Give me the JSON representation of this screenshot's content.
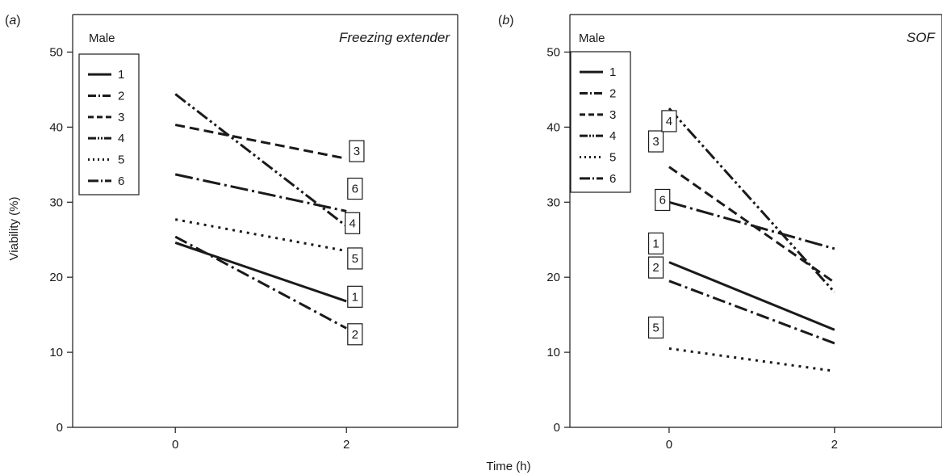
{
  "figure": {
    "xlabel": "Time (h)",
    "ylabel": "Viability (%)"
  },
  "chart_data": [
    {
      "type": "line",
      "panel": "(a)",
      "panel_letter": "a",
      "title": "Freezing extender",
      "legend_title": "Male",
      "legend_placement": "top-left",
      "x": [
        0,
        2
      ],
      "xticks": [
        "0",
        "2"
      ],
      "xlim": [
        -1.2,
        3.3
      ],
      "ylim": [
        0,
        55
      ],
      "yticks": [
        0,
        10,
        20,
        30,
        40,
        50
      ],
      "grid": false,
      "series": [
        {
          "name": "1",
          "values": [
            24.6,
            16.8
          ],
          "dash": "solid",
          "tag_anchor": [
            2.1,
            17.4
          ]
        },
        {
          "name": "2",
          "values": [
            25.4,
            13.2
          ],
          "dash": "dashdot",
          "tag_anchor": [
            2.1,
            12.4
          ]
        },
        {
          "name": "3",
          "values": [
            40.3,
            35.8
          ],
          "dash": "dashed",
          "tag_anchor": [
            2.12,
            36.8
          ]
        },
        {
          "name": "4",
          "values": [
            44.4,
            26.8
          ],
          "dash": "dashdotdot",
          "tag_anchor": [
            2.07,
            27.2
          ]
        },
        {
          "name": "5",
          "values": [
            27.7,
            23.5
          ],
          "dash": "dotted",
          "tag_anchor": [
            2.1,
            22.5
          ]
        },
        {
          "name": "6",
          "values": [
            33.7,
            28.8
          ],
          "dash": "longdashdot",
          "tag_anchor": [
            2.1,
            31.8
          ]
        }
      ]
    },
    {
      "type": "line",
      "panel": "(b)",
      "panel_letter": "b",
      "title": "SOF",
      "legend_title": "Male",
      "legend_placement": "top-left",
      "x": [
        0,
        2
      ],
      "xticks": [
        "0",
        "2"
      ],
      "xlim": [
        -1.2,
        3.3
      ],
      "ylim": [
        0,
        55
      ],
      "yticks": [
        0,
        10,
        20,
        30,
        40,
        50
      ],
      "grid": false,
      "series": [
        {
          "name": "1",
          "values": [
            22.0,
            13.0
          ],
          "dash": "solid",
          "tag_anchor": [
            -0.16,
            24.5
          ]
        },
        {
          "name": "2",
          "values": [
            19.5,
            11.2
          ],
          "dash": "dashdot",
          "tag_anchor": [
            -0.16,
            21.3
          ]
        },
        {
          "name": "3",
          "values": [
            34.7,
            19.3
          ],
          "dash": "dashed",
          "tag_anchor": [
            -0.16,
            38.1
          ]
        },
        {
          "name": "4",
          "values": [
            42.5,
            18.0
          ],
          "dash": "dashdotdot",
          "tag_anchor": [
            0.0,
            40.8
          ]
        },
        {
          "name": "5",
          "values": [
            10.5,
            7.5
          ],
          "dash": "dotted",
          "tag_anchor": [
            -0.16,
            13.3
          ]
        },
        {
          "name": "6",
          "values": [
            30.0,
            23.8
          ],
          "dash": "longdashdot",
          "tag_anchor": [
            -0.08,
            30.3
          ]
        }
      ]
    }
  ]
}
